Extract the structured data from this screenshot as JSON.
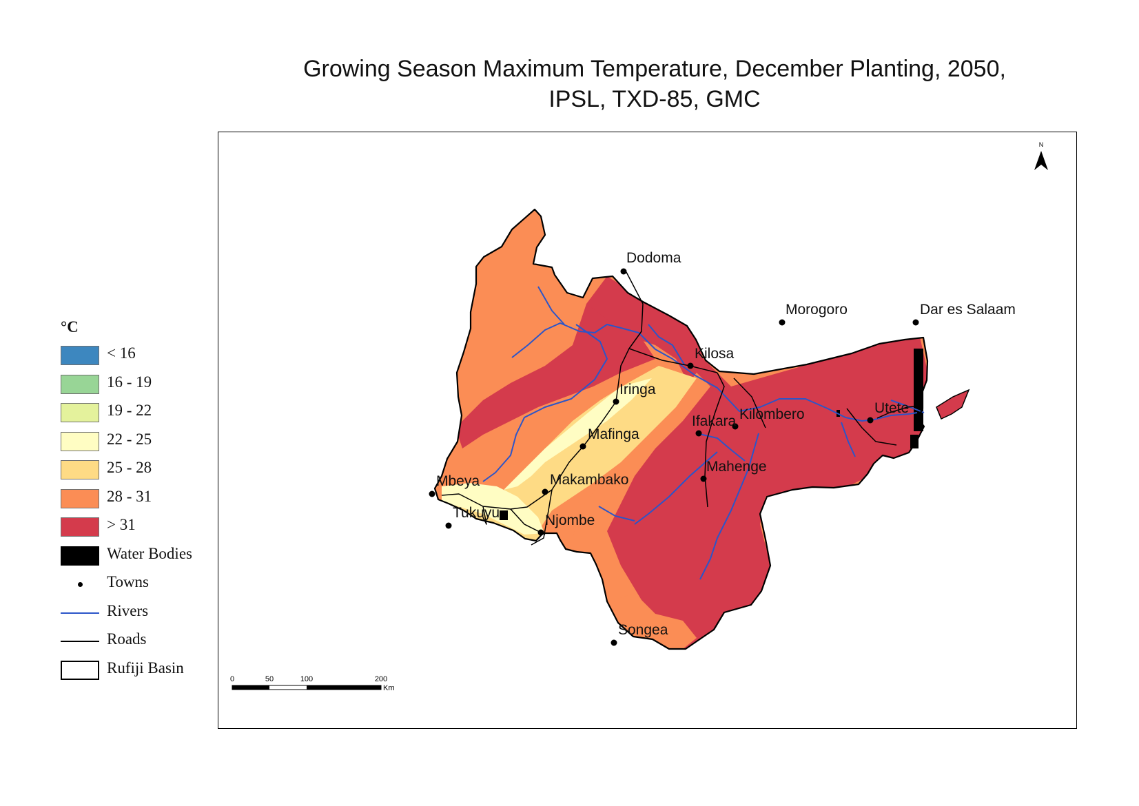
{
  "title": {
    "line1": "Growing Season Maximum Temperature, December Planting, 2050,",
    "line2": "IPSL, TXD-85, GMC"
  },
  "legend": {
    "unit": "°C",
    "classes": [
      {
        "label": "< 16",
        "color": "#3d87bf"
      },
      {
        "label": "16 - 19",
        "color": "#98d596"
      },
      {
        "label": "19 - 22",
        "color": "#e4f29c"
      },
      {
        "label": "22 - 25",
        "color": "#fffdc3"
      },
      {
        "label": "25 - 28",
        "color": "#fedb85"
      },
      {
        "label": "28 - 31",
        "color": "#fb8d55"
      },
      {
        "label": "> 31",
        "color": "#d43b4c"
      }
    ],
    "water_bodies": "Water Bodies",
    "towns": "Towns",
    "rivers": "Rivers",
    "roads": "Roads",
    "basin": "Rufiji Basin"
  },
  "colors": {
    "river": "#2b55c9",
    "road": "#000000",
    "water": "#000000",
    "t_28_31": "#fb8d55",
    "t_gt31": "#d43b4c",
    "t_25_28": "#fedb85",
    "t_22_25": "#fffdc3"
  },
  "north_arrow": {
    "label": "N",
    "icon": "north-arrow-icon"
  },
  "scale_bar": {
    "ticks": [
      "0",
      "50",
      "100",
      "200"
    ],
    "unit": "Km"
  },
  "towns": [
    "Dodoma",
    "Morogoro",
    "Dar es Salaam",
    "Kilosa",
    "Iringa",
    "Utete",
    "Kilombero",
    "Ifakara",
    "Mafinga",
    "Mahenge",
    "Mbeya",
    "Makambako",
    "Tukuyu",
    "Njombe",
    "Songea"
  ]
}
